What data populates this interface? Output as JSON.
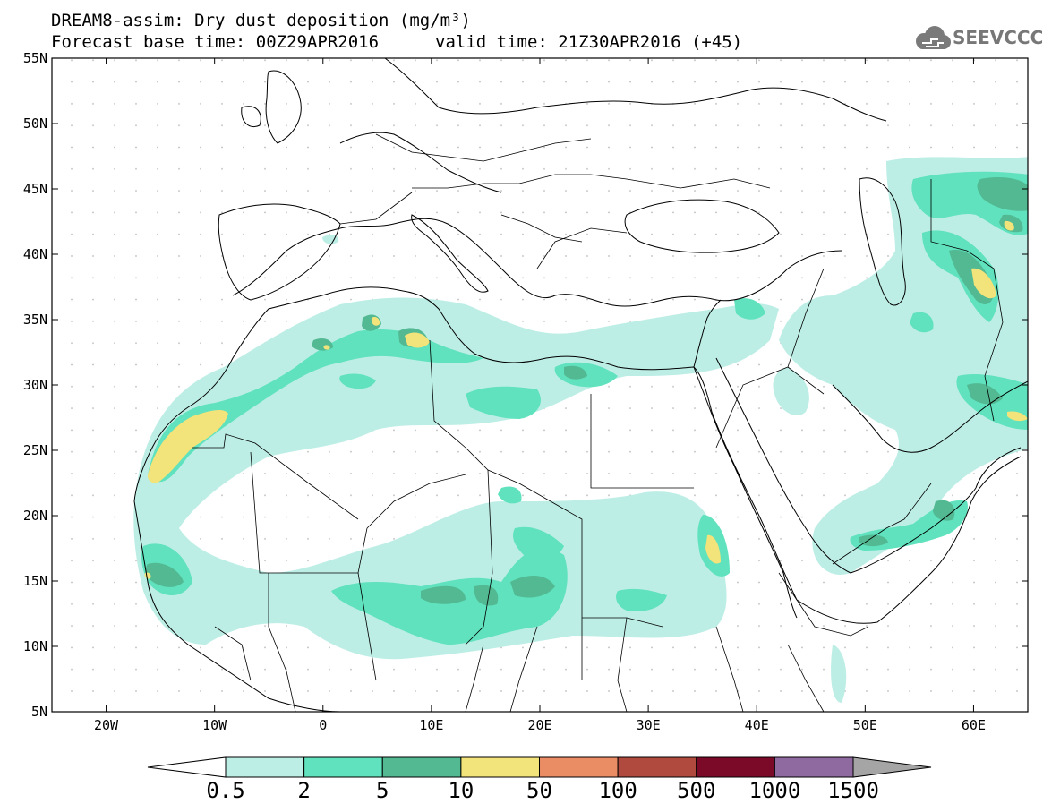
{
  "title": {
    "line1": "DREAM8-assim: Dry dust deposition (mg/m³)",
    "line2_base": "Forecast base time: 00Z29APR2016",
    "line2_valid": "valid time: 21Z30APR2016 (+45)"
  },
  "logo": {
    "text": "SEEVCCC",
    "icon": "cloud-logo-icon"
  },
  "map": {
    "lon_range": [
      -25,
      65
    ],
    "lat_range": [
      5,
      55
    ],
    "lon_ticks": [
      {
        "value": -20,
        "label": "20W"
      },
      {
        "value": -10,
        "label": "10W"
      },
      {
        "value": 0,
        "label": "0"
      },
      {
        "value": 10,
        "label": "10E"
      },
      {
        "value": 20,
        "label": "20E"
      },
      {
        "value": 30,
        "label": "30E"
      },
      {
        "value": 40,
        "label": "40E"
      },
      {
        "value": 50,
        "label": "50E"
      },
      {
        "value": 60,
        "label": "60E"
      }
    ],
    "lat_ticks": [
      {
        "value": 55,
        "label": "55N"
      },
      {
        "value": 50,
        "label": "50N"
      },
      {
        "value": 45,
        "label": "45N"
      },
      {
        "value": 40,
        "label": "40N"
      },
      {
        "value": 35,
        "label": "35N"
      },
      {
        "value": 30,
        "label": "30N"
      },
      {
        "value": 25,
        "label": "25N"
      },
      {
        "value": 20,
        "label": "20N"
      },
      {
        "value": 15,
        "label": "15N"
      },
      {
        "value": 10,
        "label": "10N"
      },
      {
        "value": 5,
        "label": "5N"
      }
    ]
  },
  "colorbar": {
    "labels": [
      "0.5",
      "2",
      "5",
      "10",
      "50",
      "100",
      "500",
      "1000",
      "1500"
    ],
    "colors": [
      "#ffffff",
      "#bdeee6",
      "#5fe2bd",
      "#52b992",
      "#f2e37a",
      "#eb8d64",
      "#b14a3e",
      "#7b0a28",
      "#8e6aa0",
      "#a5a5a5"
    ]
  }
}
